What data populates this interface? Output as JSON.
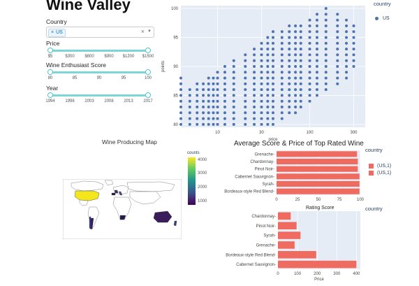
{
  "app_title": "Wine Valley",
  "filters": {
    "country_label": "Country",
    "country_chip": "US",
    "chip_remove": "×",
    "clear_symbol": "×",
    "caret_symbol": "▼",
    "price_label": "Price",
    "price_ticks": [
      "$5",
      "$300",
      "$600",
      "$900",
      "$1200",
      "$1500"
    ],
    "score_label": "Wine Enthusiast Score",
    "score_ticks": [
      "80",
      "85",
      "90",
      "95",
      "100"
    ],
    "year_label": "Year",
    "year_ticks": [
      "1994",
      "1998",
      "2003",
      "2008",
      "2013",
      "2017"
    ]
  },
  "scatter": {
    "legend_title": "country",
    "legend_item": "US",
    "point_color": "#4c72b0",
    "chart_data": {
      "type": "scatter",
      "xlabel": "price",
      "ylabel": "points",
      "x_scale": "log",
      "xlim": [
        4,
        400
      ],
      "ylim": [
        79.5,
        100.5
      ],
      "x_ticks": [
        "10",
        "30",
        "100",
        "300"
      ],
      "y_ticks": [
        "80",
        "85",
        "90",
        "95",
        "100"
      ],
      "series": [
        {
          "name": "US",
          "x": [
            4,
            5,
            6,
            7,
            8,
            9,
            10,
            12,
            15,
            20,
            25,
            30,
            35,
            40,
            50,
            60,
            70,
            80,
            100,
            120,
            150,
            200,
            250,
            300
          ],
          "y_min": [
            80,
            80,
            80,
            80,
            80,
            80,
            80,
            80,
            80,
            80,
            80,
            80,
            80,
            80,
            81,
            82,
            82,
            83,
            84,
            85,
            86,
            87,
            88,
            90
          ],
          "y_max": [
            88,
            86,
            87,
            87,
            88,
            88,
            89,
            90,
            91,
            92,
            93,
            94,
            95,
            96,
            96,
            97,
            97,
            97,
            98,
            99,
            100,
            99,
            98,
            97
          ]
        }
      ]
    }
  },
  "map": {
    "title": "Wine Producing Map",
    "colorbar_title": "counts",
    "colorbar_ticks": [
      "4000",
      "3000",
      "2000",
      "1000"
    ]
  },
  "top_chart": {
    "title": "Average Score & Price of Top Rated Wine",
    "legend_title": "country",
    "legend_items": [
      "(US,1)",
      "(US,1)"
    ],
    "bar_color": "#ef6a5f",
    "chart_data": {
      "type": "bar",
      "orientation": "horizontal",
      "categories": [
        "Grenache",
        "Chardonnay",
        "Pinot Noir",
        "Cabernet Sauvignon",
        "Syrah",
        "Bordeaux-style Red Blend"
      ],
      "values": [
        96,
        97,
        97,
        99,
        99,
        99
      ],
      "xlim": [
        0,
        100
      ],
      "x_ticks": [
        "0",
        "25",
        "50",
        "75",
        "100"
      ]
    }
  },
  "bottom_chart": {
    "title": "Rating Score",
    "legend_title": "country",
    "bar_color": "#ef6a5f",
    "chart_data": {
      "type": "bar",
      "orientation": "horizontal",
      "categories": [
        "Chardonnay",
        "Pinot Noir",
        "Syrah",
        "Grenache",
        "Bordeaux-style Red Blend",
        "Cabernet Sauvignon"
      ],
      "values": [
        65,
        95,
        115,
        85,
        195,
        400
      ],
      "xlabel": "Price",
      "xlim": [
        0,
        420
      ],
      "x_ticks": [
        "0",
        "100",
        "200",
        "300",
        "400"
      ]
    }
  }
}
